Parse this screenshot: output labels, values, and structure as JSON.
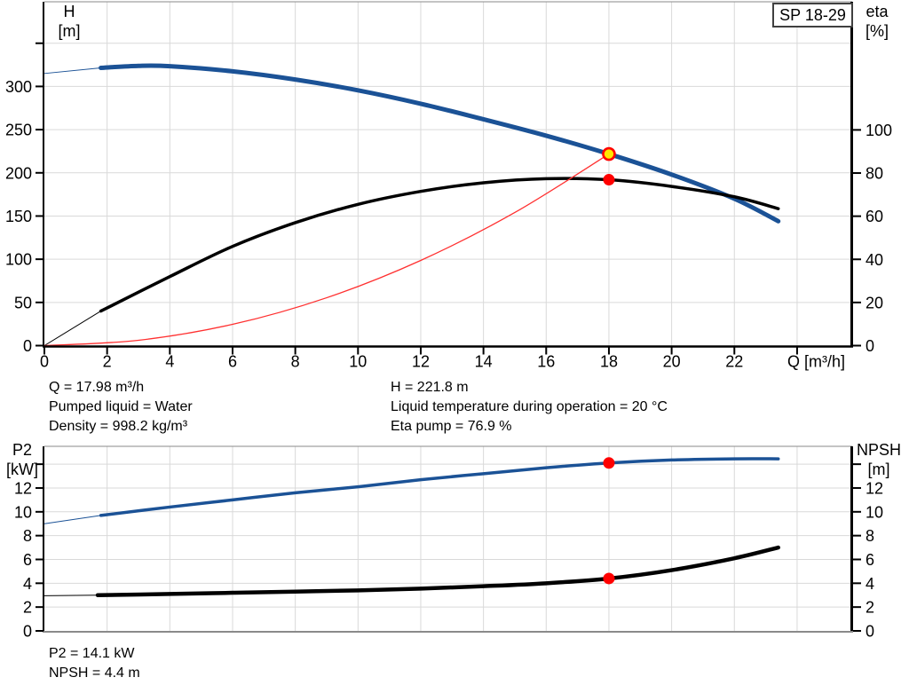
{
  "pump_model": "SP 18-29",
  "annotations": {
    "top_left": [
      "Q = 17.98 m³/h",
      "Pumped liquid = Water",
      "Density = 998.2 kg/m³"
    ],
    "top_right": [
      "H = 221.8 m",
      "Liquid temperature during operation = 20 °C",
      "Eta pump = 76.9 %"
    ],
    "bottom": [
      "P2 = 14.1 kW",
      "NPSH = 4.4 m"
    ]
  },
  "colors": {
    "curve_blue": "#1b5296",
    "curve_black": "#000000",
    "curve_red": "#ff3030",
    "marker_red": "#ff0000",
    "marker_yellow": "#ffe800",
    "grid": "#d9d9d9",
    "frame": "#8a8a8a",
    "axis": "#000000"
  },
  "chart_data": [
    {
      "type": "line",
      "title": "SP 18-29 head and efficiency curves",
      "x_axis": {
        "label": "Q [m³/h]",
        "min": 0,
        "max": 25.7,
        "labeled_ticks": [
          0,
          2,
          4,
          6,
          8,
          10,
          12,
          14,
          16,
          18,
          20,
          22
        ],
        "axis_ticks": [
          0,
          2,
          4,
          6,
          8,
          10,
          12,
          14,
          16,
          18,
          20,
          22,
          24
        ],
        "grid_ticks": [
          2,
          4,
          6,
          8,
          10,
          12,
          14,
          16,
          18,
          20,
          22,
          24
        ]
      },
      "left_axis": {
        "label": [
          "H",
          "[m]"
        ],
        "unit": "m",
        "min": 0,
        "max": 398,
        "labeled_ticks": [
          0,
          50,
          100,
          150,
          200,
          250,
          300
        ],
        "unlabeled_ticks": [
          350
        ],
        "grid_ticks": [
          50,
          100,
          150,
          200,
          250,
          300,
          350
        ]
      },
      "right_axis": {
        "label": [
          "eta",
          "[%]"
        ],
        "unit": "%",
        "min": 0,
        "max": 159.4,
        "labeled_ticks": [
          0,
          20,
          40,
          60,
          80,
          100
        ],
        "unlabeled_ticks": []
      },
      "series": [
        {
          "name": "head-curve",
          "axis": "left",
          "color": "#1b5296",
          "width": 5,
          "thick_from": 1.8,
          "points": [
            [
              0,
              315
            ],
            [
              1.8,
              321.5
            ],
            [
              3,
              323.8
            ],
            [
              4,
              323.4
            ],
            [
              6,
              317.5
            ],
            [
              8,
              308
            ],
            [
              10,
              295.5
            ],
            [
              12,
              280
            ],
            [
              14,
              262
            ],
            [
              16,
              243
            ],
            [
              18,
              221.8
            ],
            [
              20,
              198
            ],
            [
              22,
              170
            ],
            [
              23.4,
              144
            ]
          ]
        },
        {
          "name": "efficiency-curve",
          "axis": "right",
          "color": "#000000",
          "width": 3.5,
          "thick_from": 1.8,
          "points": [
            [
              0,
              0
            ],
            [
              1.8,
              16
            ],
            [
              4,
              32
            ],
            [
              6,
              46
            ],
            [
              8,
              57
            ],
            [
              10,
              65.5
            ],
            [
              12,
              71.5
            ],
            [
              14,
              75.5
            ],
            [
              16,
              77.4
            ],
            [
              18,
              76.9
            ],
            [
              20,
              73.8
            ],
            [
              22,
              69
            ],
            [
              23.4,
              63.5
            ]
          ]
        },
        {
          "name": "system-curve",
          "axis": "left",
          "color": "#ff3030",
          "width": 1.3,
          "thick_from": null,
          "points": [
            [
              0,
              0
            ],
            [
              3,
              6.2
            ],
            [
              6,
              24.6
            ],
            [
              9,
              55.4
            ],
            [
              12,
              98.6
            ],
            [
              15,
              154.1
            ],
            [
              18,
              221.8
            ]
          ]
        }
      ],
      "markers": [
        {
          "name": "duty-point-head",
          "axis": "left",
          "q": 18,
          "value": 221.8,
          "fill": "#ffe800",
          "stroke": "#ff0000",
          "r": 6.5,
          "stroke_width": 2.6
        },
        {
          "name": "duty-point-efficiency",
          "axis": "right",
          "q": 18,
          "value": 76.9,
          "fill": "#ff0000",
          "stroke": "none",
          "r": 6.5,
          "stroke_width": 0
        }
      ]
    },
    {
      "type": "line",
      "title": "SP 18-29 power and NPSH curves",
      "x_axis": {
        "label": "",
        "min": 0,
        "max": 25.7,
        "labeled_ticks": [],
        "axis_ticks": [],
        "grid_ticks": [
          2,
          4,
          6,
          8,
          10,
          12,
          14,
          16,
          18,
          20,
          22,
          24
        ]
      },
      "left_axis": {
        "label": [
          "P2",
          "[kW]"
        ],
        "unit": "kW",
        "min": 0,
        "max": 15.5,
        "labeled_ticks": [
          0,
          2,
          4,
          6,
          8,
          10,
          12
        ],
        "unlabeled_ticks": [
          14
        ],
        "grid_ticks": [
          2,
          4,
          6,
          8,
          10,
          12,
          14
        ]
      },
      "right_axis": {
        "label": [
          "NPSH",
          "[m]"
        ],
        "unit": "m",
        "min": 0,
        "max": 15.5,
        "labeled_ticks": [
          0,
          2,
          4,
          6,
          8,
          10,
          12
        ],
        "unlabeled_ticks": [
          14
        ]
      },
      "series": [
        {
          "name": "p2-curve",
          "axis": "left",
          "color": "#1b5296",
          "width": 3.5,
          "thick_from": 1.8,
          "points": [
            [
              0,
              9.0
            ],
            [
              1.8,
              9.7
            ],
            [
              4,
              10.4
            ],
            [
              6,
              11.0
            ],
            [
              8,
              11.6
            ],
            [
              10,
              12.1
            ],
            [
              12,
              12.7
            ],
            [
              14,
              13.2
            ],
            [
              16,
              13.7
            ],
            [
              18,
              14.1
            ],
            [
              20,
              14.35
            ],
            [
              22,
              14.45
            ],
            [
              23.4,
              14.45
            ]
          ]
        },
        {
          "name": "npsh-curve",
          "axis": "right",
          "color": "#000000",
          "width": 4.5,
          "thick_from": 1.7,
          "points": [
            [
              0,
              2.95
            ],
            [
              1.7,
              3.0
            ],
            [
              4,
              3.1
            ],
            [
              6,
              3.2
            ],
            [
              8,
              3.3
            ],
            [
              10,
              3.4
            ],
            [
              12,
              3.55
            ],
            [
              14,
              3.75
            ],
            [
              16,
              4.0
            ],
            [
              18,
              4.4
            ],
            [
              20,
              5.1
            ],
            [
              22,
              6.1
            ],
            [
              23.4,
              7.0
            ]
          ]
        }
      ],
      "markers": [
        {
          "name": "duty-point-p2",
          "axis": "left",
          "q": 18,
          "value": 14.1,
          "fill": "#ff0000",
          "stroke": "none",
          "r": 6.5,
          "stroke_width": 0
        },
        {
          "name": "duty-point-npsh",
          "axis": "right",
          "q": 18,
          "value": 4.4,
          "fill": "#ff0000",
          "stroke": "none",
          "r": 6.5,
          "stroke_width": 0
        }
      ]
    }
  ]
}
